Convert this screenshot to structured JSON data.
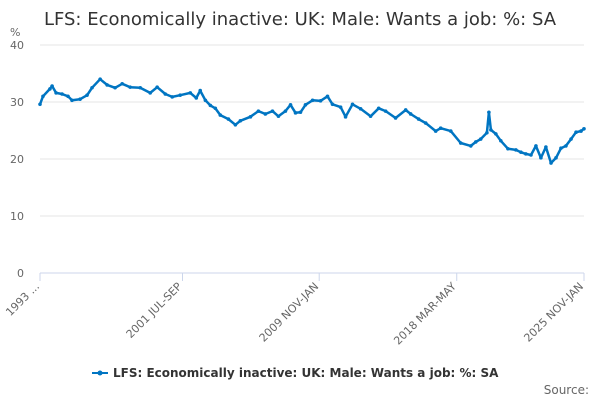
{
  "chart_data": {
    "type": "line",
    "title": "LFS: Economically inactive: UK: Male: Wants a job: %: SA",
    "ylabel": "%",
    "xlabel": "",
    "ylim": [
      0,
      40
    ],
    "xlim": [
      1993.0,
      2025.83
    ],
    "yticks": [
      0,
      10,
      20,
      30,
      40
    ],
    "xticks": [
      {
        "value": 1993.0,
        "label": "1993 ..."
      },
      {
        "value": 2001.6,
        "label": "2001 JUL-SEP"
      },
      {
        "value": 2009.85,
        "label": "2009 NOV-JAN"
      },
      {
        "value": 2018.15,
        "label": "2018 MAR-MAY"
      },
      {
        "value": 2025.83,
        "label": "2025 NOV-JAN"
      }
    ],
    "grid": true,
    "legend_position": "bottom",
    "series": [
      {
        "name": "LFS: Economically inactive: UK: Male: Wants a job: %: SA",
        "color": "#0075c2",
        "x": [
          1993.0,
          1993.18,
          1993.6,
          1993.73,
          1993.97,
          1994.33,
          1994.69,
          1994.93,
          1995.42,
          1995.84,
          1996.14,
          1996.63,
          1997.05,
          1997.53,
          1997.96,
          1998.44,
          1999.05,
          1999.65,
          2000.07,
          2000.56,
          2000.98,
          2001.46,
          2002.07,
          2002.43,
          2002.67,
          2002.98,
          2003.28,
          2003.58,
          2003.88,
          2004.37,
          2004.79,
          2005.09,
          2005.7,
          2006.18,
          2006.6,
          2007.03,
          2007.39,
          2007.81,
          2008.12,
          2008.42,
          2008.72,
          2009.02,
          2009.45,
          2009.93,
          2010.35,
          2010.65,
          2011.14,
          2011.44,
          2011.86,
          2012.35,
          2012.95,
          2013.44,
          2013.86,
          2014.46,
          2015.07,
          2015.37,
          2015.85,
          2016.28,
          2016.88,
          2017.18,
          2017.79,
          2018.39,
          2019.0,
          2019.3,
          2019.6,
          2019.97,
          2020.09,
          2020.21,
          2020.51,
          2020.81,
          2021.24,
          2021.72,
          2022.02,
          2022.32,
          2022.63,
          2022.93,
          2023.23,
          2023.53,
          2023.84,
          2024.14,
          2024.44,
          2024.74,
          2025.05,
          2025.35,
          2025.65,
          2025.83
        ],
        "values": [
          29.6,
          31.0,
          32.3,
          32.8,
          31.6,
          31.4,
          31.0,
          30.3,
          30.5,
          31.2,
          32.5,
          34.0,
          33.0,
          32.5,
          33.2,
          32.6,
          32.5,
          31.6,
          32.6,
          31.4,
          30.9,
          31.2,
          31.6,
          30.7,
          32.0,
          30.3,
          29.4,
          28.9,
          27.7,
          27.0,
          26.0,
          26.7,
          27.4,
          28.4,
          27.9,
          28.4,
          27.5,
          28.4,
          29.5,
          28.1,
          28.2,
          29.5,
          30.3,
          30.2,
          31.0,
          29.6,
          29.1,
          27.4,
          29.6,
          28.8,
          27.5,
          28.9,
          28.4,
          27.2,
          28.6,
          27.9,
          27.0,
          26.3,
          24.9,
          25.4,
          24.9,
          22.8,
          22.3,
          23.0,
          23.5,
          24.6,
          28.2,
          25.1,
          24.4,
          23.2,
          21.8,
          21.6,
          21.2,
          20.9,
          20.7,
          22.3,
          20.2,
          22.1,
          19.3,
          20.2,
          21.9,
          22.3,
          23.5,
          24.7,
          24.9,
          25.3
        ]
      }
    ]
  },
  "footer": {
    "source_label": "Source:"
  }
}
